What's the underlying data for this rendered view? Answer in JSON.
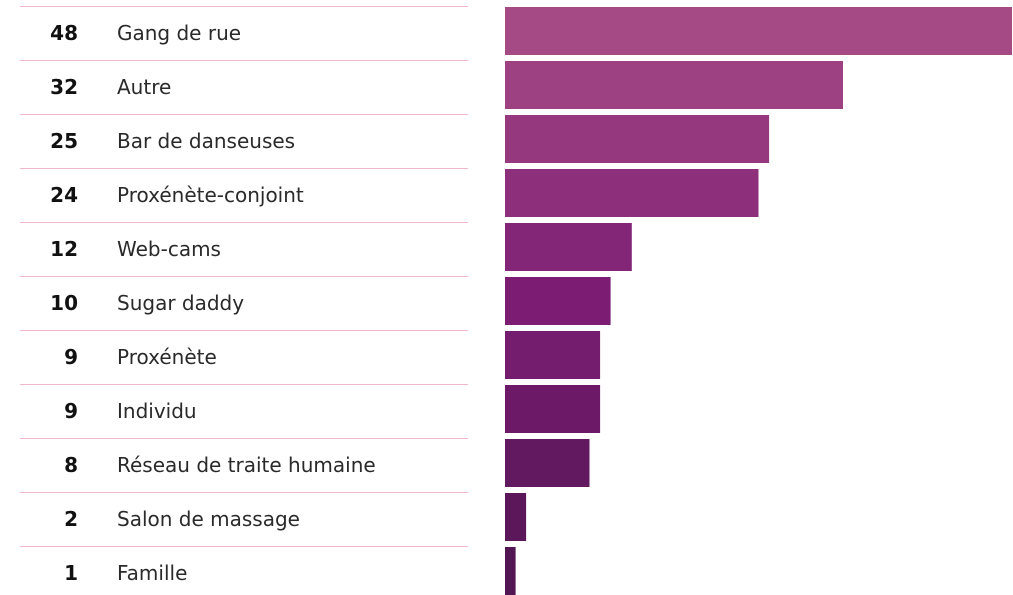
{
  "chart_data": {
    "type": "bar",
    "orientation": "horizontal",
    "categories": [
      "Gang de rue",
      "Autre",
      "Bar de danseuses",
      "Proxénète-conjoint",
      "Web-cams",
      "Sugar daddy",
      "Proxénète",
      "Individu",
      "Réseau de traite humaine",
      "Salon de massage",
      "Famille"
    ],
    "values": [
      48,
      32,
      25,
      24,
      12,
      10,
      9,
      9,
      8,
      2,
      1
    ],
    "xlim": [
      0,
      48
    ],
    "title": "",
    "xlabel": "",
    "ylabel": "",
    "grid": false,
    "legend": "none",
    "colors": {
      "bar_top": "#a64a86",
      "bar_mid": "#7c1d73",
      "bar_bottom": "#531654",
      "row_rule": "#f2b6cd"
    }
  }
}
